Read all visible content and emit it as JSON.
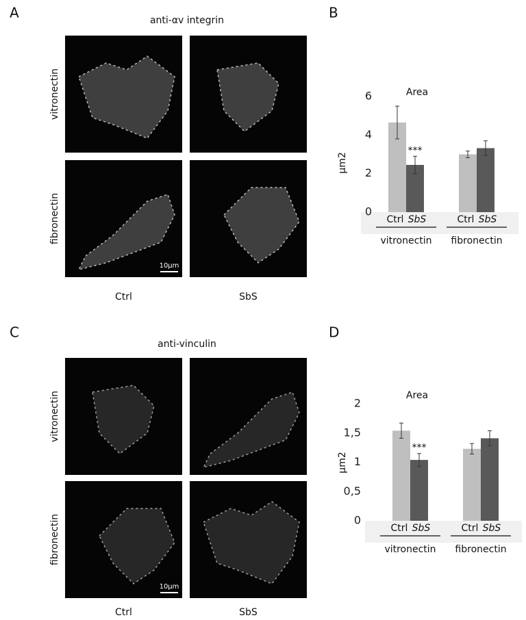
{
  "figure": {
    "panels": [
      {
        "letter": "A",
        "title": "anti-αv integrin",
        "rows": [
          "vitronectin",
          "fibronectin"
        ],
        "columns": [
          "Ctrl",
          "SbS"
        ],
        "scale_bar": "10μm"
      },
      {
        "letter": "C",
        "title": "anti-vinculin",
        "rows": [
          "vitronectin",
          "fibronectin"
        ],
        "columns": [
          "Ctrl",
          "SbS"
        ],
        "scale_bar": "10μm"
      }
    ]
  },
  "chart_data": [
    {
      "type": "bar",
      "panel_label": "B",
      "title": "Area",
      "y_label": "μm2",
      "categories": [
        "vitronectin",
        "fibronectin"
      ],
      "series": [
        {
          "name": "Ctrl",
          "color": "#bfbfbf",
          "values": [
            4.65,
            3.0
          ],
          "errors": [
            0.85,
            0.17
          ]
        },
        {
          "name": "SbS",
          "color": "#595959",
          "values": [
            2.45,
            3.32
          ],
          "errors": [
            0.45,
            0.38
          ]
        }
      ],
      "annotation": "***",
      "ylim": [
        0,
        6
      ],
      "yticks": [
        0,
        2,
        4,
        6
      ]
    },
    {
      "type": "bar",
      "panel_label": "D",
      "title": "Area",
      "y_label": "μm2",
      "categories": [
        "vitronectin",
        "fibronectin"
      ],
      "series": [
        {
          "name": "Ctrl",
          "color": "#bfbfbf",
          "values": [
            1.54,
            1.23
          ],
          "errors": [
            0.13,
            0.09
          ]
        },
        {
          "name": "SbS",
          "color": "#595959",
          "values": [
            1.04,
            1.41
          ],
          "errors": [
            0.11,
            0.13
          ]
        }
      ],
      "annotation": "***",
      "ylim": [
        0,
        2
      ],
      "yticks": [
        0,
        {
          "value": 0.5,
          "label": "0,5"
        },
        1,
        {
          "value": 1.5,
          "label": "1,5"
        },
        2
      ]
    }
  ]
}
